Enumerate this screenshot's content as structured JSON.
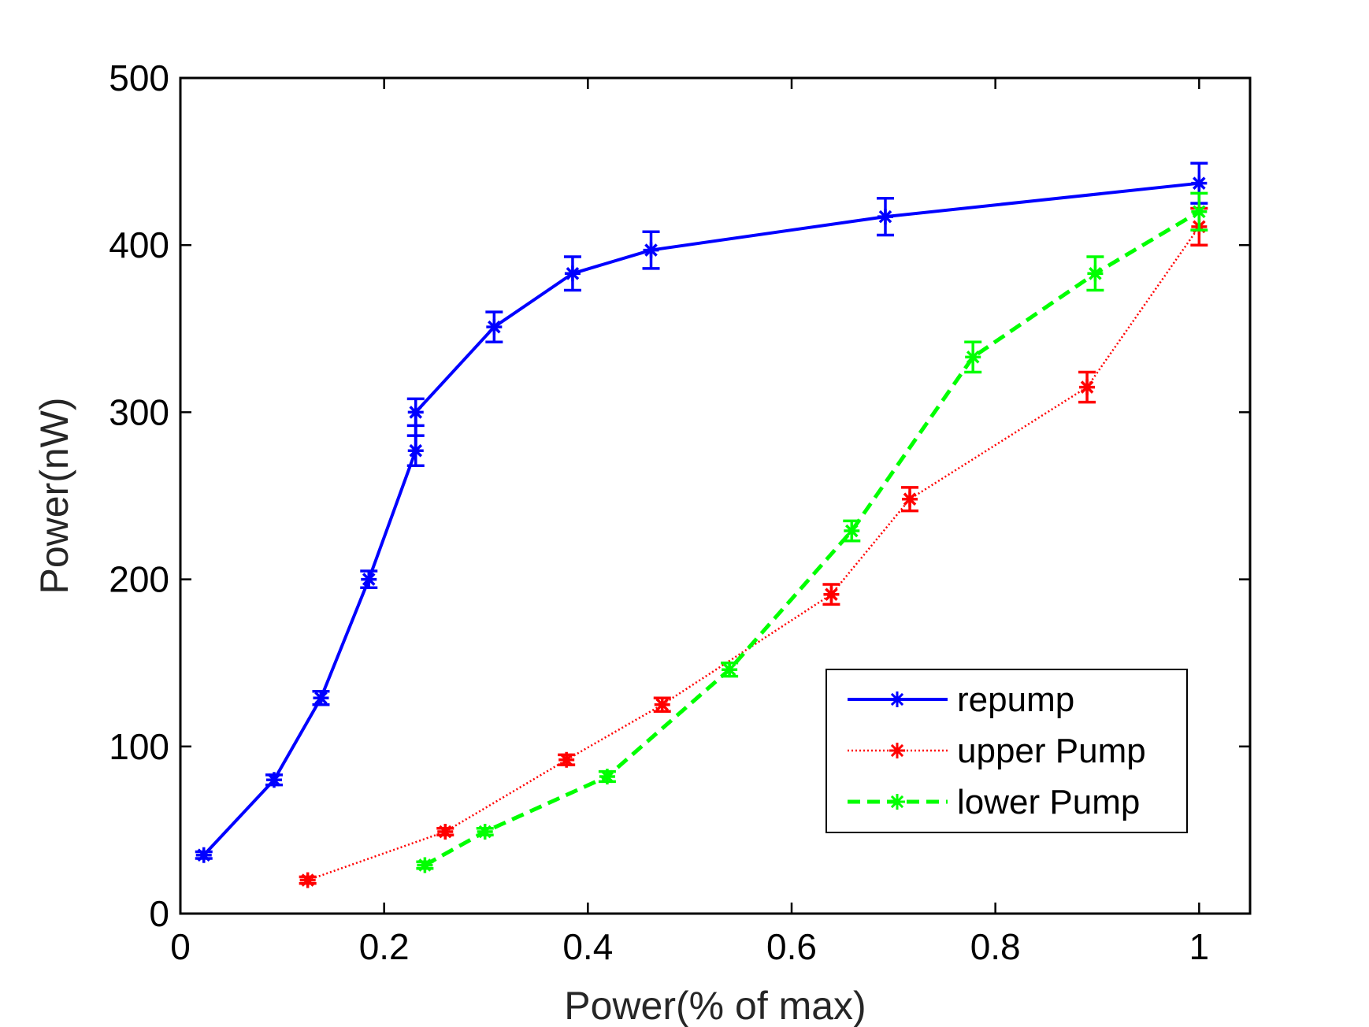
{
  "chart_data": {
    "type": "line",
    "title": "",
    "xlabel": "Power(% of max)",
    "ylabel": "Power(nW)",
    "xlim": [
      0,
      1.05
    ],
    "ylim": [
      0,
      500
    ],
    "xticks": [
      0,
      0.2,
      0.4,
      0.6,
      0.8,
      1
    ],
    "xtick_labels": [
      "0",
      "0.2",
      "0.4",
      "0.6",
      "0.8",
      "1"
    ],
    "yticks": [
      0,
      100,
      200,
      300,
      400,
      500
    ],
    "ytick_labels": [
      "0",
      "100",
      "200",
      "300",
      "400",
      "500"
    ],
    "grid": false,
    "legend_position": "lower-right",
    "series": [
      {
        "name": "repump",
        "color": "#0000ff",
        "line_style": "solid",
        "marker": "asterisk",
        "x": [
          0.023,
          0.092,
          0.138,
          0.185,
          0.231,
          0.231,
          0.308,
          0.385,
          0.462,
          0.692,
          1.0
        ],
        "y": [
          35,
          80,
          129,
          200,
          277,
          300,
          351,
          383,
          397,
          417,
          437
        ],
        "err": [
          2,
          3,
          4,
          5,
          9,
          8,
          9,
          10,
          11,
          11,
          12
        ]
      },
      {
        "name": "upper Pump",
        "color": "#ff0000",
        "line_style": "dotted",
        "marker": "asterisk",
        "x": [
          0.125,
          0.26,
          0.379,
          0.473,
          0.639,
          0.716,
          0.89,
          1.0
        ],
        "y": [
          20,
          49,
          92,
          125,
          191,
          248,
          315,
          411
        ],
        "err": [
          2,
          2,
          3,
          4,
          6,
          7,
          9,
          11
        ]
      },
      {
        "name": "lower Pump",
        "color": "#00ff00",
        "line_style": "dashed",
        "marker": "asterisk",
        "x": [
          0.24,
          0.299,
          0.419,
          0.539,
          0.659,
          0.778,
          0.898,
          1.0
        ],
        "y": [
          29,
          49,
          82,
          146,
          229,
          333,
          383,
          420
        ],
        "err": [
          2,
          2,
          3,
          4,
          6,
          9,
          10,
          11
        ]
      }
    ]
  }
}
